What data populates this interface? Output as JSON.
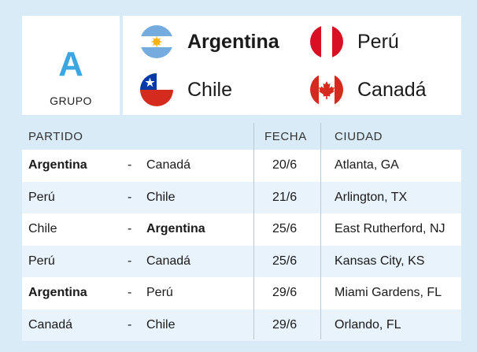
{
  "group": {
    "letter": "A",
    "label": "GRUPO"
  },
  "teams": [
    {
      "name": "Argentina",
      "bold": true,
      "flag": "argentina-flag-icon"
    },
    {
      "name": "Perú",
      "bold": false,
      "flag": "peru-flag-icon"
    },
    {
      "name": "Chile",
      "bold": false,
      "flag": "chile-flag-icon"
    },
    {
      "name": "Canadá",
      "bold": false,
      "flag": "canada-flag-icon"
    }
  ],
  "table": {
    "headers": {
      "match": "PARTIDO",
      "date": "FECHA",
      "city": "CIUDAD"
    },
    "rows": [
      {
        "home": "Argentina",
        "home_bold": true,
        "sep": "-",
        "away": "Canadá",
        "away_bold": false,
        "date": "20/6",
        "city": "Atlanta, GA"
      },
      {
        "home": "Perú",
        "home_bold": false,
        "sep": "-",
        "away": "Chile",
        "away_bold": false,
        "date": "21/6",
        "city": "Arlington, TX"
      },
      {
        "home": "Chile",
        "home_bold": false,
        "sep": "-",
        "away": "Argentina",
        "away_bold": true,
        "date": "25/6",
        "city": "East Rutherford, NJ"
      },
      {
        "home": "Perú",
        "home_bold": false,
        "sep": "-",
        "away": "Canadá",
        "away_bold": false,
        "date": "25/6",
        "city": "Kansas City, KS"
      },
      {
        "home": "Argentina",
        "home_bold": true,
        "sep": "-",
        "away": "Perú",
        "away_bold": false,
        "date": "29/6",
        "city": "Miami Gardens, FL"
      },
      {
        "home": "Canadá",
        "home_bold": false,
        "sep": "-",
        "away": "Chile",
        "away_bold": false,
        "date": "29/6",
        "city": "Orlando, FL"
      }
    ]
  },
  "colors": {
    "background": "#d9ebf7",
    "accent": "#3aa7e2",
    "row_alt": "#e8f3fb",
    "flag_red": "#d52b1e",
    "flag_blue": "#0039a6",
    "flag_sky": "#74acdf",
    "sun": "#f6b40e"
  }
}
